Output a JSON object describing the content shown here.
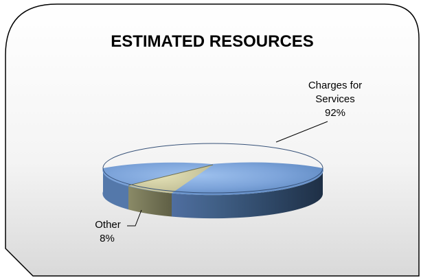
{
  "chart_data": {
    "type": "pie",
    "title": "ESTIMATED RESOURCES",
    "slices": [
      {
        "name_lines": [
          "Charges for",
          "Services"
        ],
        "label": "92%",
        "value": 92,
        "color": "#6F9BD1"
      },
      {
        "name_lines": [
          "Other"
        ],
        "label": "8%",
        "value": 8,
        "color": "#C9C7A1"
      }
    ],
    "legend": "none",
    "grid": false
  }
}
